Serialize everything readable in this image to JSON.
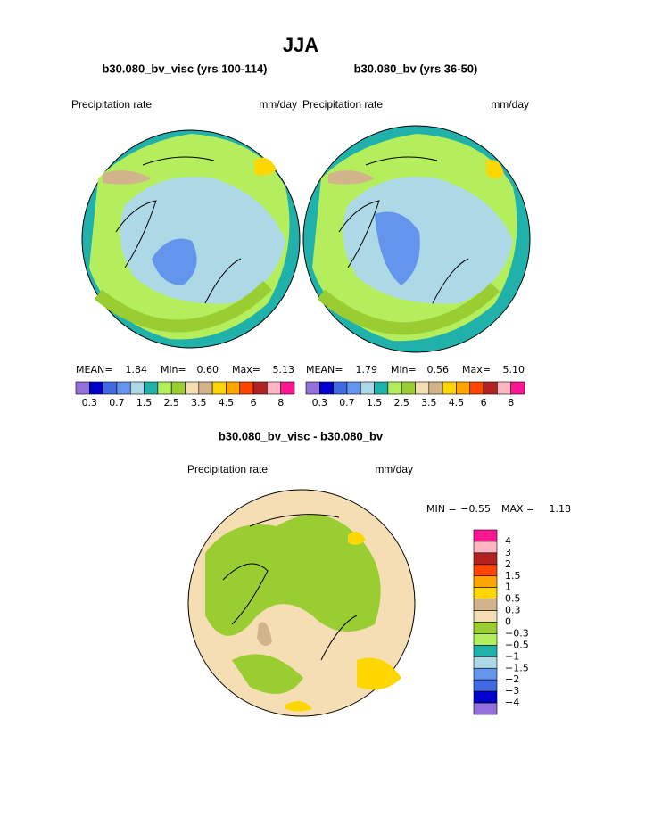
{
  "title": "JJA",
  "panels": [
    {
      "subtitle": "b30.080_bv_visc (yrs 100-114)",
      "left_label": "Precipitation rate",
      "right_label": "mm/day",
      "stats": {
        "mean_label": "MEAN=",
        "mean": "1.84",
        "min_label": "Min=",
        "min": "0.60",
        "max_label": "Max=",
        "max": "5.13"
      },
      "colorbar": {
        "colors": [
          "#9370db",
          "#0000cd",
          "#4169e1",
          "#6495ed",
          "#add8e6",
          "#20b2aa",
          "#b4ee5c",
          "#9acd32",
          "#f5deb3",
          "#d2b48c",
          "#ffd700",
          "#ffa500",
          "#ff4500",
          "#b22222",
          "#ffb6c1",
          "#ff1493"
        ],
        "labels": [
          "0.3",
          "0.7",
          "1.5",
          "2.5",
          "3.5",
          "4.5",
          "6",
          "8"
        ]
      }
    },
    {
      "subtitle": "b30.080_bv (yrs 36-50)",
      "left_label": "Precipitation rate",
      "right_label": "mm/day",
      "stats": {
        "mean_label": "MEAN=",
        "mean": "1.79",
        "min_label": "Min=",
        "min": "0.56",
        "max_label": "Max=",
        "max": "5.10"
      },
      "colorbar": {
        "colors": [
          "#9370db",
          "#0000cd",
          "#4169e1",
          "#6495ed",
          "#add8e6",
          "#20b2aa",
          "#b4ee5c",
          "#9acd32",
          "#f5deb3",
          "#d2b48c",
          "#ffd700",
          "#ffa500",
          "#ff4500",
          "#b22222",
          "#ffb6c1",
          "#ff1493"
        ],
        "labels": [
          "0.3",
          "0.7",
          "1.5",
          "2.5",
          "3.5",
          "4.5",
          "6",
          "8"
        ]
      }
    }
  ],
  "difference": {
    "title": "b30.080_bv_visc - b30.080_bv",
    "left_label": "Precipitation rate",
    "right_label": "mm/day",
    "stats": {
      "min_label": "MIN =",
      "min": "−0.55",
      "max_label": "MAX =",
      "max": "1.18"
    },
    "colorbar": {
      "colors": [
        "#ff1493",
        "#ffb6c1",
        "#b22222",
        "#ff4500",
        "#ffa500",
        "#ffd700",
        "#d2b48c",
        "#f5deb3",
        "#9acd32",
        "#b4ee5c",
        "#20b2aa",
        "#add8e6",
        "#6495ed",
        "#4169e1",
        "#0000cd",
        "#9370db"
      ],
      "labels": [
        "4",
        "3",
        "2",
        "1.5",
        "1",
        "0.5",
        "0.3",
        "0",
        "−0.3",
        "−0.5",
        "−1",
        "−1.5",
        "−2",
        "−3",
        "−4"
      ]
    }
  }
}
